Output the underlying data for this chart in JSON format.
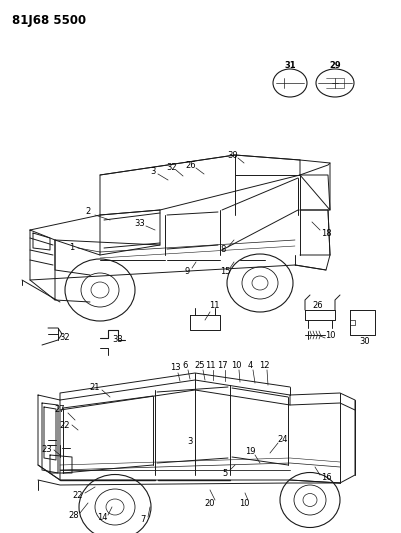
{
  "title": "81J68 5500",
  "bg_color": "#ffffff",
  "line_color": "#1a1a1a",
  "label_color": "#000000",
  "fig_width": 4.01,
  "fig_height": 5.33,
  "dpi": 100,
  "title_fontsize": 8.5,
  "label_fontsize": 6.0
}
